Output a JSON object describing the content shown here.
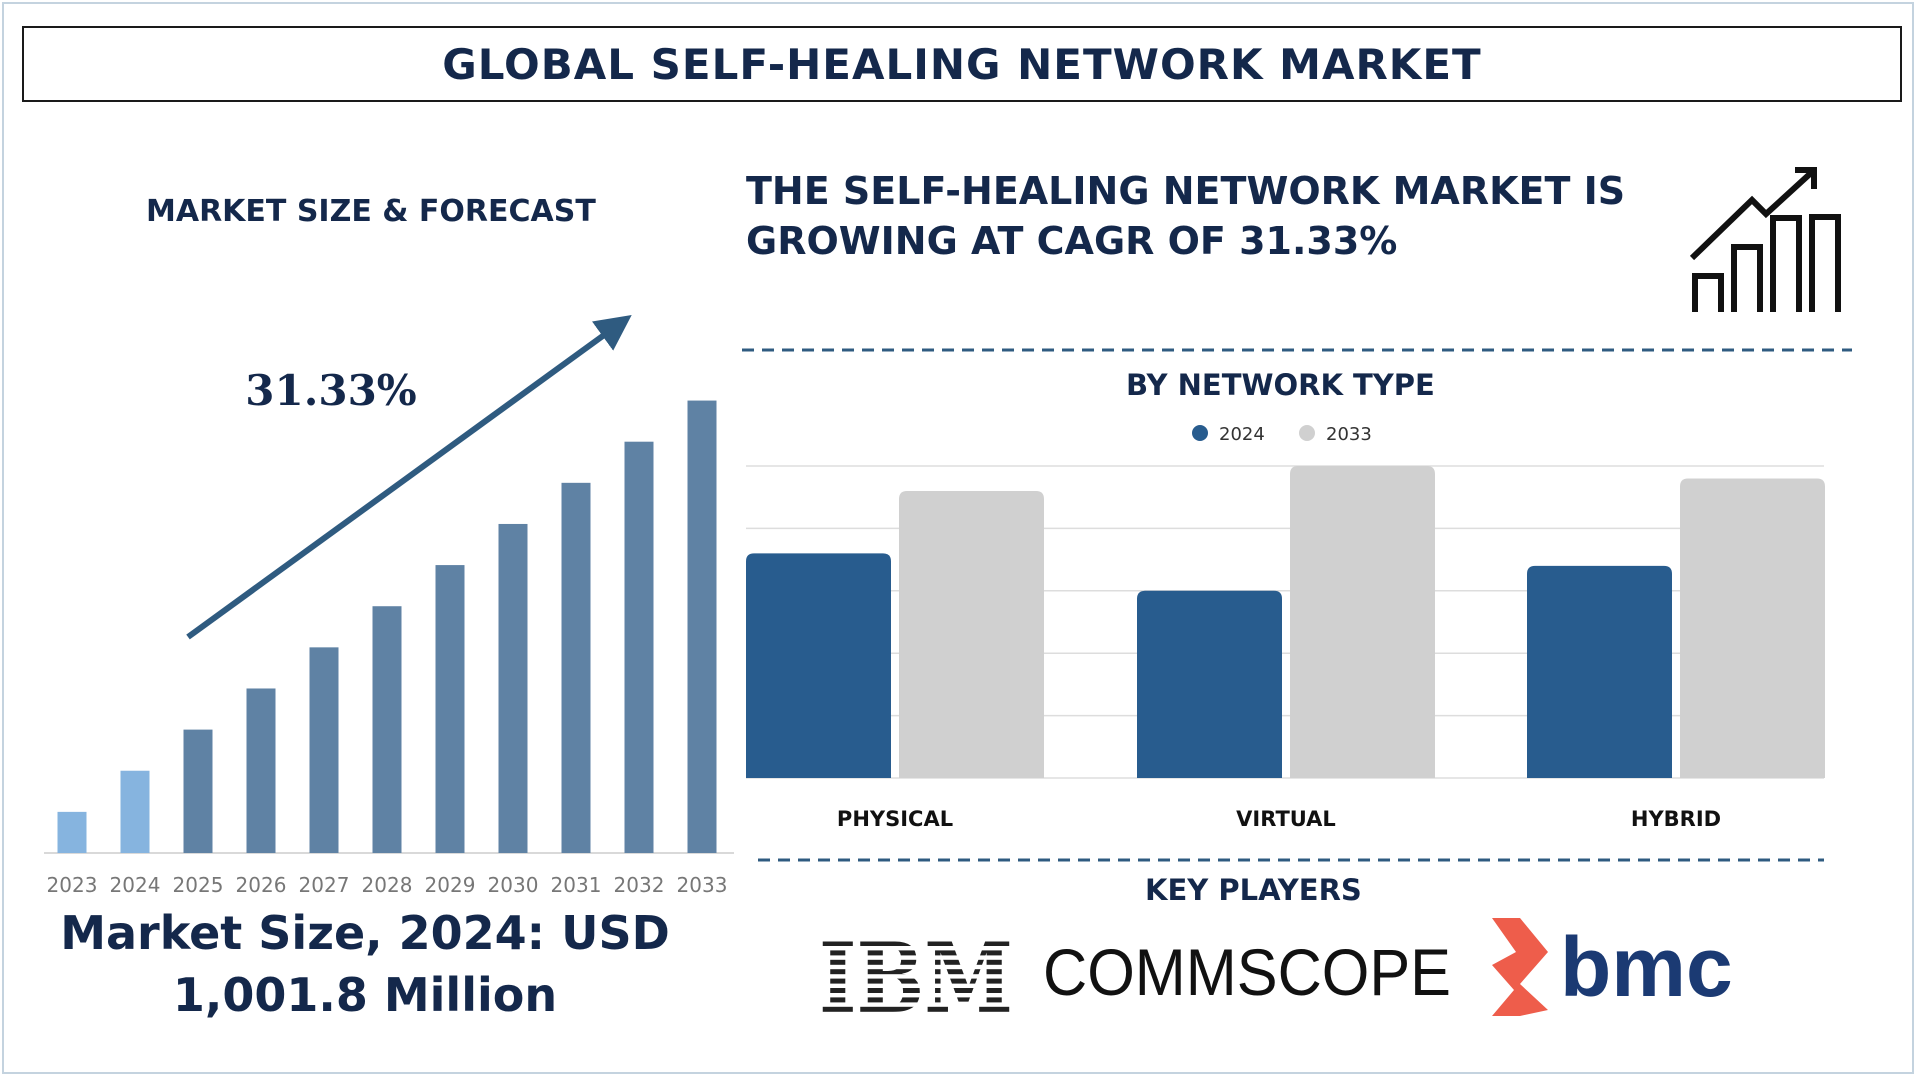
{
  "header": {
    "title": "GLOBAL SELF-HEALING NETWORK MARKET"
  },
  "left_panel": {
    "heading": "MARKET SIZE & FORECAST",
    "cagr_label": "31.33%",
    "market_size_line1": "Market Size, 2024: USD",
    "market_size_line2": "1,001.8 Million"
  },
  "right_panel": {
    "headline_line1": "THE SELF-HEALING NETWORK MARKET IS",
    "headline_line2": "GROWING AT CAGR OF 31.33%",
    "chart_heading": "BY NETWORK TYPE",
    "key_players_heading": "KEY PLAYERS"
  },
  "key_players": [
    {
      "name": "IBM",
      "icon": "ibm-logo"
    },
    {
      "name": "COMMSCOPE",
      "icon": "commscope-logo"
    },
    {
      "name": "bmc",
      "icon": "bmc-logo"
    }
  ],
  "icons": {
    "growth": "growth-chart-icon"
  },
  "colors": {
    "navy": "#14284b",
    "light_blue": "#86b4df",
    "slate_blue": "#5f82a4",
    "series_2024": "#285c8e",
    "series_2033": "#d0d0d0",
    "dashed": "#2f5b80"
  },
  "chart_data": [
    {
      "type": "bar",
      "x": [
        "2023",
        "2024",
        "2025",
        "2026",
        "2027",
        "2028",
        "2029",
        "2030",
        "2031",
        "2032",
        "2033"
      ],
      "values": [
        1,
        2,
        3,
        4,
        5,
        6,
        7,
        8,
        9,
        10,
        11
      ],
      "ylim": [
        0,
        11.5
      ],
      "grid": false,
      "annotations": [
        "31.33%"
      ]
    },
    {
      "type": "bar",
      "categories": [
        "PHYSICAL",
        "VIRTUAL",
        "HYBRID"
      ],
      "series": [
        {
          "name": "2024",
          "values": [
            72,
            60,
            68
          ]
        },
        {
          "name": "2033",
          "values": [
            92,
            100,
            96
          ]
        }
      ],
      "ylim": [
        0,
        100
      ],
      "grid": true,
      "legend": "top-center"
    }
  ]
}
